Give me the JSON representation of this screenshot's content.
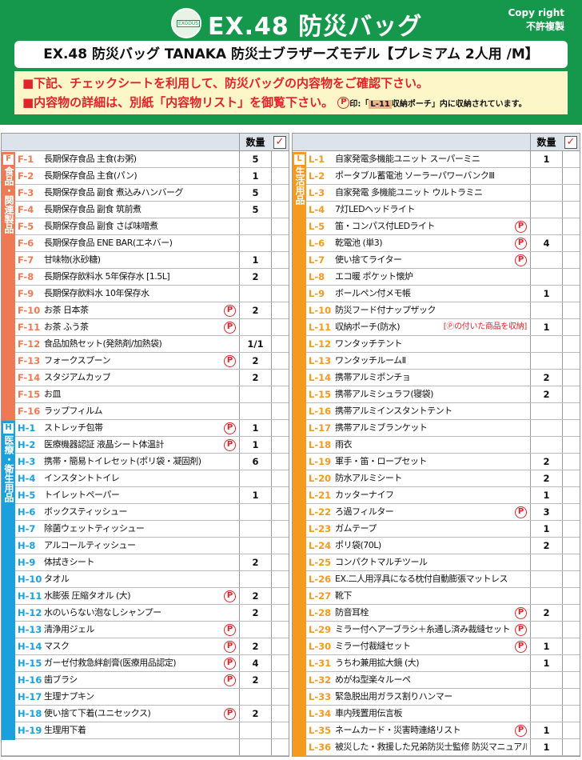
{
  "header": {
    "title": "EX.48 防災バッグ",
    "logo_text": "EXODUS",
    "copyright": [
      "Copy right",
      "不許複製"
    ],
    "model": "EX.48 防災バッグ TANAKA 防災士ブラザーズモデル【プレミアム 2人用 /M】",
    "note1": "■下記、チェックシートを利用して、防災バッグの内容物をご確認下さい。",
    "note2": "■内容物の詳細は、別紙「内容物リスト」を御覧下さい。",
    "note2_p": "P",
    "note2_small_a": "印:「",
    "note2_tag": "L-11",
    "note2_small_b": "収納ポーチ」内に収納されています。"
  },
  "table_header": {
    "qty": "数量",
    "check": "✓"
  },
  "colors": {
    "green": "#16984c",
    "food": "#ee7a55",
    "health": "#1aa0dc",
    "life": "#f39a1f",
    "red": "#e0242a"
  },
  "left_groups": [
    {
      "letter": "F",
      "label": "食品・関連製品",
      "color": "#ee7a55",
      "items": [
        {
          "code": "F-1",
          "name": "長期保存食品 主食(お粥)",
          "qty": "5"
        },
        {
          "code": "F-2",
          "name": "長期保存食品 主食(パン)",
          "qty": "1"
        },
        {
          "code": "F-3",
          "name": "長期保存食品 副食 煮込みハンバーグ",
          "qty": "5"
        },
        {
          "code": "F-4",
          "name": "長期保存食品 副食 筑前煮",
          "qty": "5"
        },
        {
          "code": "F-5",
          "name": "長期保存食品 副食 さば味噌煮",
          "qty": ""
        },
        {
          "code": "F-6",
          "name": "長期保存食品 ENE BAR(エネバー)",
          "qty": ""
        },
        {
          "code": "F-7",
          "name": "甘味物(氷砂糖)",
          "qty": "1"
        },
        {
          "code": "F-8",
          "name": "長期保存飲料水 5年保存水 [1.5L]",
          "qty": "2"
        },
        {
          "code": "F-9",
          "name": "長期保存飲料水 10年保存水",
          "qty": ""
        },
        {
          "code": "F-10",
          "name": "お茶 日本茶",
          "qty": "2",
          "p": "P"
        },
        {
          "code": "F-11",
          "name": "お茶 ふう茶",
          "qty": "",
          "p": "P"
        },
        {
          "code": "F-12",
          "name": "食品加熱セット(発熱剤/加熱袋)",
          "qty": "1/1"
        },
        {
          "code": "F-13",
          "name": "フォークスプーン",
          "qty": "2",
          "p": "P"
        },
        {
          "code": "F-14",
          "name": "スタジアムカップ",
          "qty": "2"
        },
        {
          "code": "F-15",
          "name": "お皿",
          "qty": ""
        },
        {
          "code": "F-16",
          "name": "ラップフィルム",
          "qty": ""
        }
      ]
    },
    {
      "letter": "H",
      "label": "医療・衛生用品",
      "color": "#1aa0dc",
      "items": [
        {
          "code": "H-1",
          "name": "ストレッチ包帯",
          "qty": "1",
          "p": "P"
        },
        {
          "code": "H-2",
          "name": "医療機器認証 液晶シート体温計",
          "qty": "1",
          "p": "P"
        },
        {
          "code": "H-3",
          "name": "携帯・簡易トイレセット(ポリ袋・凝固剤)",
          "qty": "6"
        },
        {
          "code": "H-4",
          "name": "インスタントトイレ",
          "qty": ""
        },
        {
          "code": "H-5",
          "name": "トイレットペーパー",
          "qty": "1"
        },
        {
          "code": "H-6",
          "name": "ボックスティッシュー",
          "qty": ""
        },
        {
          "code": "H-7",
          "name": "除菌ウェットティッシュー",
          "qty": ""
        },
        {
          "code": "H-8",
          "name": "アルコールティッシュー",
          "qty": ""
        },
        {
          "code": "H-9",
          "name": "体拭きシート",
          "qty": "2"
        },
        {
          "code": "H-10",
          "name": "タオル",
          "qty": ""
        },
        {
          "code": "H-11",
          "name": "水膨張 圧縮タオル (大)",
          "qty": "2",
          "p": "P"
        },
        {
          "code": "H-12",
          "name": "水のいらない泡なしシャンプー",
          "qty": "2"
        },
        {
          "code": "H-13",
          "name": "清浄用ジェル",
          "qty": "",
          "p": "P"
        },
        {
          "code": "H-14",
          "name": "マスク",
          "qty": "2",
          "p": "P"
        },
        {
          "code": "H-15",
          "name": "ガーゼ付救急絆創膏(医療用品認定)",
          "qty": "4",
          "p": "P"
        },
        {
          "code": "H-16",
          "name": "歯ブラシ",
          "qty": "2",
          "p": "P"
        },
        {
          "code": "H-17",
          "name": "生理ナプキン",
          "qty": ""
        },
        {
          "code": "H-18",
          "name": "使い捨て下着(ユニセックス)",
          "qty": "2",
          "p": "P"
        },
        {
          "code": "H-19",
          "name": "生理用下着",
          "qty": ""
        }
      ]
    }
  ],
  "right_groups": [
    {
      "letter": "L",
      "label": "生活用品",
      "color": "#f39a1f",
      "items": [
        {
          "code": "L-1",
          "name": "自家発電多機能ユニット スーパーミニ",
          "qty": "1"
        },
        {
          "code": "L-2",
          "name": "ポータブル蓄電池 ソーラーパワーバンクⅢ",
          "qty": ""
        },
        {
          "code": "L-3",
          "name": "自家発電 多機能ユニット ウルトラミニ",
          "qty": ""
        },
        {
          "code": "L-4",
          "name": "7灯LEDヘッドライト",
          "qty": ""
        },
        {
          "code": "L-5",
          "name": "笛・コンパス付LEDライト",
          "qty": "",
          "p": "P"
        },
        {
          "code": "L-6",
          "name": "乾電池 (単3)",
          "qty": "4",
          "p": "P"
        },
        {
          "code": "L-7",
          "name": "使い捨てライター",
          "qty": "",
          "p": "P"
        },
        {
          "code": "L-8",
          "name": "エコ暖 ポケット懐炉",
          "qty": ""
        },
        {
          "code": "L-9",
          "name": "ボールペン付メモ帳",
          "qty": "1"
        },
        {
          "code": "L-10",
          "name": "防災フード付ナップザック",
          "qty": ""
        },
        {
          "code": "L-11",
          "name": "収納ポーチ(防水)",
          "qty": "1",
          "note": "[Ⓟの付いた商品を収納]"
        },
        {
          "code": "L-12",
          "name": "ワンタッチテント",
          "qty": ""
        },
        {
          "code": "L-13",
          "name": "ワンタッチルームⅡ",
          "qty": ""
        },
        {
          "code": "L-14",
          "name": "携帯アルミポンチョ",
          "qty": "2"
        },
        {
          "code": "L-15",
          "name": "携帯アルミシュラフ(寝袋)",
          "qty": "2"
        },
        {
          "code": "L-16",
          "name": "携帯アルミインスタントテント",
          "qty": ""
        },
        {
          "code": "L-17",
          "name": "携帯アルミブランケット",
          "qty": ""
        },
        {
          "code": "L-18",
          "name": "雨衣",
          "qty": ""
        },
        {
          "code": "L-19",
          "name": "軍手・笛・ロープセット",
          "qty": "2"
        },
        {
          "code": "L-20",
          "name": "防水アルミシート",
          "qty": "2"
        },
        {
          "code": "L-21",
          "name": "カッターナイフ",
          "qty": "1"
        },
        {
          "code": "L-22",
          "name": "ろ過フィルター",
          "qty": "3",
          "p": "P"
        },
        {
          "code": "L-23",
          "name": "ガムテープ",
          "qty": "1"
        },
        {
          "code": "L-24",
          "name": "ポリ袋(70L)",
          "qty": "2"
        },
        {
          "code": "L-25",
          "name": "コンパクトマルチツール",
          "qty": ""
        },
        {
          "code": "L-26",
          "name": "EX.二人用浮具になる枕付自動膨張マットレス",
          "qty": ""
        },
        {
          "code": "L-27",
          "name": "靴下",
          "qty": ""
        },
        {
          "code": "L-28",
          "name": "防音耳栓",
          "qty": "2",
          "p": "P"
        },
        {
          "code": "L-29",
          "name": "ミラー付ヘアーブラシ＋糸通し済み裁縫セット",
          "qty": "",
          "p": "P"
        },
        {
          "code": "L-30",
          "name": "ミラー付裁縫セット",
          "qty": "1",
          "p": "P"
        },
        {
          "code": "L-31",
          "name": "うちわ兼用拡大鏡 (大)",
          "qty": "1"
        },
        {
          "code": "L-32",
          "name": "めがね型楽々ルーペ",
          "qty": ""
        },
        {
          "code": "L-33",
          "name": "緊急脱出用ガラス割りハンマー",
          "qty": ""
        },
        {
          "code": "L-34",
          "name": "車内残置用伝言板",
          "qty": ""
        },
        {
          "code": "L-35",
          "name": "ネームカード・災害時連絡リスト",
          "qty": "1",
          "p": "P"
        },
        {
          "code": "L-36",
          "name": "被災した・救援した兄弟防災士監修 防災マニュアル",
          "qty": "1"
        }
      ]
    }
  ]
}
